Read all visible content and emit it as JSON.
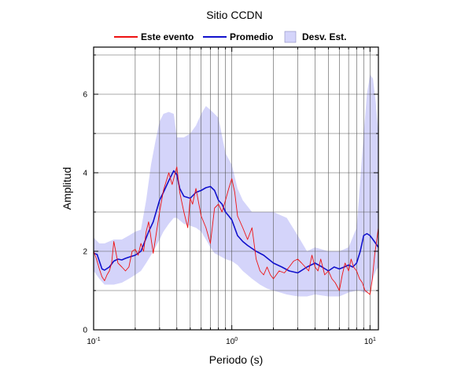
{
  "chart_data": {
    "type": "line",
    "title": "Sitio CCDN",
    "xlabel": "Periodo (s)",
    "ylabel": "Amplitud",
    "x_scale": "log",
    "xlim": [
      0.1,
      11.5
    ],
    "ylim": [
      0,
      7.2
    ],
    "x_ticks": [
      {
        "value": 0.1,
        "base": "10",
        "exp": "-1"
      },
      {
        "value": 1,
        "base": "10",
        "exp": "0"
      },
      {
        "value": 10,
        "base": "10",
        "exp": "1"
      }
    ],
    "y_ticks": [
      0,
      2,
      4,
      6
    ],
    "grid": true,
    "legend_position": "top-center",
    "legend": [
      {
        "label": "Este evento",
        "kind": "line",
        "color": "#ee1111"
      },
      {
        "label": "Promedio",
        "kind": "line",
        "color": "#1111cc"
      },
      {
        "label": "Desv. Est.",
        "kind": "band",
        "color": "#d4d4fa"
      }
    ],
    "series": [
      {
        "name": "Promedio",
        "color": "#1111cc",
        "x": [
          0.1,
          0.106,
          0.11,
          0.115,
          0.12,
          0.13,
          0.14,
          0.15,
          0.16,
          0.17,
          0.18,
          0.2,
          0.22,
          0.25,
          0.27,
          0.3,
          0.32,
          0.35,
          0.38,
          0.4,
          0.42,
          0.45,
          0.5,
          0.55,
          0.6,
          0.65,
          0.7,
          0.75,
          0.8,
          0.85,
          0.9,
          0.95,
          1.0,
          1.1,
          1.2,
          1.3,
          1.5,
          1.7,
          2.0,
          2.3,
          2.6,
          3.0,
          3.5,
          4.0,
          4.5,
          5.0,
          5.5,
          6.0,
          6.5,
          7.0,
          7.5,
          8.0,
          8.5,
          9.0,
          9.5,
          10.0,
          10.5,
          11.0,
          11.5
        ],
        "values": [
          1.95,
          1.92,
          1.75,
          1.55,
          1.52,
          1.6,
          1.75,
          1.8,
          1.78,
          1.82,
          1.85,
          1.9,
          2.0,
          2.5,
          2.75,
          3.3,
          3.5,
          3.8,
          4.05,
          3.95,
          3.6,
          3.4,
          3.35,
          3.5,
          3.55,
          3.62,
          3.65,
          3.55,
          3.3,
          3.2,
          3.0,
          2.9,
          2.8,
          2.4,
          2.25,
          2.15,
          2.0,
          1.9,
          1.7,
          1.6,
          1.5,
          1.45,
          1.6,
          1.7,
          1.6,
          1.5,
          1.6,
          1.55,
          1.6,
          1.65,
          1.6,
          1.7,
          2.0,
          2.4,
          2.45,
          2.4,
          2.3,
          2.2,
          2.1
        ]
      },
      {
        "name": "Este evento",
        "color": "#ee1111",
        "x": [
          0.1,
          0.105,
          0.11,
          0.115,
          0.12,
          0.125,
          0.13,
          0.135,
          0.14,
          0.15,
          0.16,
          0.17,
          0.18,
          0.19,
          0.2,
          0.21,
          0.22,
          0.23,
          0.24,
          0.25,
          0.27,
          0.3,
          0.32,
          0.35,
          0.37,
          0.4,
          0.42,
          0.45,
          0.48,
          0.5,
          0.52,
          0.55,
          0.6,
          0.65,
          0.7,
          0.75,
          0.8,
          0.85,
          0.9,
          0.95,
          1.0,
          1.05,
          1.1,
          1.2,
          1.3,
          1.4,
          1.5,
          1.6,
          1.7,
          1.8,
          1.9,
          2.0,
          2.2,
          2.4,
          2.6,
          2.8,
          3.0,
          3.2,
          3.4,
          3.6,
          3.8,
          4.0,
          4.2,
          4.4,
          4.7,
          5.0,
          5.3,
          5.6,
          6.0,
          6.3,
          6.6,
          7.0,
          7.3,
          7.6,
          8.0,
          8.4,
          8.8,
          9.2,
          9.6,
          10.0,
          10.4,
          10.8,
          11.2,
          11.5
        ],
        "values": [
          2.0,
          1.8,
          1.55,
          1.35,
          1.25,
          1.4,
          1.5,
          1.7,
          2.25,
          1.7,
          1.6,
          1.5,
          1.6,
          2.0,
          2.05,
          1.9,
          2.2,
          2.0,
          2.5,
          2.75,
          1.95,
          3.0,
          3.55,
          4.0,
          3.7,
          4.15,
          3.5,
          3.0,
          2.6,
          3.35,
          3.2,
          3.6,
          2.9,
          2.6,
          2.2,
          3.1,
          3.2,
          3.0,
          3.3,
          3.6,
          3.85,
          3.5,
          2.9,
          2.6,
          2.3,
          2.6,
          1.8,
          1.5,
          1.4,
          1.6,
          1.4,
          1.3,
          1.5,
          1.45,
          1.6,
          1.75,
          1.8,
          1.7,
          1.6,
          1.5,
          1.9,
          1.6,
          1.5,
          1.8,
          1.4,
          1.5,
          1.3,
          1.2,
          1.0,
          1.4,
          1.7,
          1.5,
          1.8,
          1.6,
          1.5,
          1.3,
          1.2,
          1.0,
          0.95,
          0.9,
          1.3,
          1.9,
          2.3,
          2.6
        ]
      }
    ],
    "band": {
      "name": "Desv. Est.",
      "color": "#d4d4fa",
      "x": [
        0.1,
        0.11,
        0.12,
        0.14,
        0.16,
        0.18,
        0.2,
        0.22,
        0.24,
        0.26,
        0.28,
        0.3,
        0.32,
        0.35,
        0.38,
        0.4,
        0.45,
        0.5,
        0.55,
        0.6,
        0.65,
        0.7,
        0.75,
        0.8,
        0.9,
        1.0,
        1.1,
        1.2,
        1.4,
        1.6,
        1.8,
        2.0,
        2.5,
        3.0,
        3.5,
        4.0,
        5.0,
        6.0,
        7.0,
        8.0,
        8.5,
        9.0,
        9.5,
        10.0,
        10.5,
        11.0,
        11.5
      ],
      "upper": [
        2.35,
        2.2,
        2.2,
        2.3,
        2.3,
        2.4,
        2.5,
        2.55,
        3.3,
        4.2,
        4.8,
        5.3,
        5.5,
        5.55,
        5.5,
        4.9,
        4.9,
        5.0,
        5.2,
        5.5,
        5.7,
        5.6,
        5.5,
        5.4,
        4.5,
        4.2,
        3.6,
        3.3,
        3.0,
        3.0,
        3.0,
        3.0,
        2.85,
        2.4,
        2.0,
        2.1,
        2.0,
        2.0,
        2.1,
        2.6,
        3.8,
        5.0,
        6.0,
        6.5,
        6.4,
        5.8,
        5.0
      ],
      "lower": [
        1.5,
        1.3,
        1.15,
        1.15,
        1.2,
        1.3,
        1.4,
        1.5,
        1.7,
        1.9,
        2.1,
        2.3,
        2.5,
        2.7,
        2.85,
        2.85,
        2.7,
        2.65,
        2.6,
        2.5,
        2.3,
        2.1,
        1.95,
        1.9,
        1.8,
        1.75,
        1.65,
        1.5,
        1.3,
        1.15,
        1.05,
        1.0,
        0.9,
        0.85,
        0.85,
        0.9,
        0.85,
        0.85,
        0.95,
        1.0,
        1.0,
        0.95,
        0.95,
        1.05,
        1.3,
        1.5,
        1.6
      ]
    }
  }
}
